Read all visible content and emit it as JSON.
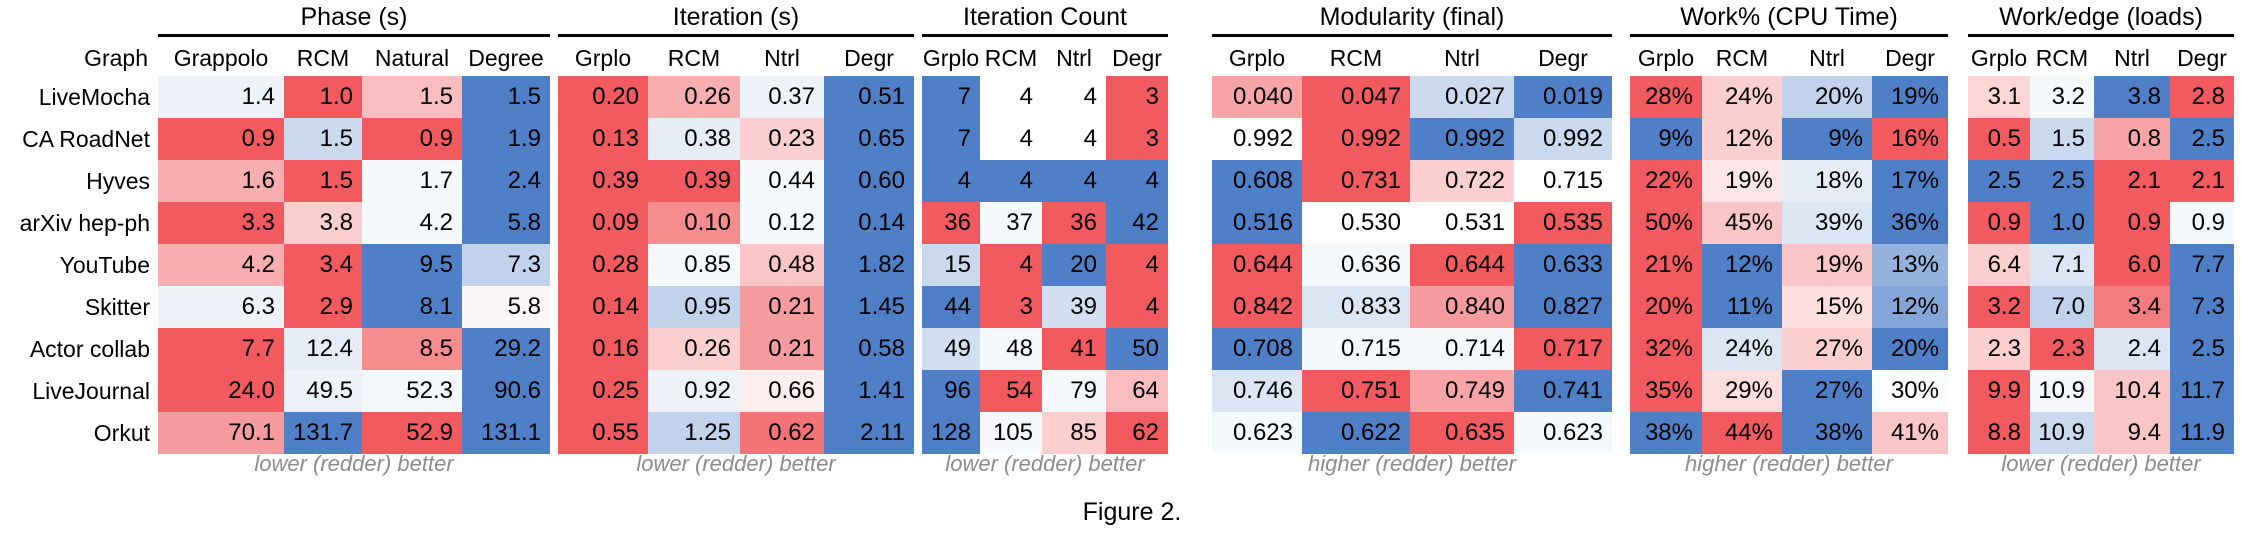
{
  "chart_data": {
    "type": "table",
    "caption": "Figure 2.",
    "row_header": "Graph",
    "rows": [
      "LiveMocha",
      "CA RoadNet",
      "Hyves",
      "arXiv hep-ph",
      "YouTube",
      "Skitter",
      "Actor collab",
      "LiveJournal",
      "Orkut"
    ],
    "colors": {
      "good": "#f15a5e",
      "neutral": "#ffffff",
      "bad": "#4f7fc6"
    },
    "groups": [
      {
        "title": "Phase (s)",
        "columns": [
          "Grappolo",
          "RCM",
          "Natural",
          "Degree"
        ],
        "note": "lower (redder) better",
        "better": "lower",
        "display": [
          [
            "1.4",
            "1.0",
            "1.5",
            "1.5"
          ],
          [
            "0.9",
            "1.5",
            "0.9",
            "1.9"
          ],
          [
            "1.6",
            "1.5",
            "1.7",
            "2.4"
          ],
          [
            "3.3",
            "3.8",
            "4.2",
            "5.8"
          ],
          [
            "4.2",
            "3.4",
            "9.5",
            "7.3"
          ],
          [
            "6.3",
            "2.9",
            "8.1",
            "5.8"
          ],
          [
            "7.7",
            "12.4",
            "8.5",
            "29.2"
          ],
          [
            "24.0",
            "49.5",
            "52.3",
            "90.6"
          ],
          [
            "70.1",
            "131.7",
            "52.9",
            "131.1"
          ]
        ],
        "shade": [
          [
            0.1,
            -1,
            -0.4,
            1
          ],
          [
            -1,
            0.3,
            -1,
            1
          ],
          [
            -0.5,
            -1,
            0.05,
            1
          ],
          [
            -1,
            -0.3,
            0.05,
            1
          ],
          [
            -0.5,
            -1,
            1,
            0.35
          ],
          [
            0.1,
            -1,
            1,
            -0.05
          ],
          [
            -1,
            0.15,
            -0.7,
            1
          ],
          [
            -1,
            0.1,
            0.05,
            1
          ],
          [
            -0.6,
            1,
            -1,
            1
          ]
        ]
      },
      {
        "title": "Iteration (s)",
        "columns": [
          "Grplo",
          "RCM",
          "Ntrl",
          "Degr"
        ],
        "note": "lower (redder) better",
        "better": "lower",
        "display": [
          [
            "0.20",
            "0.26",
            "0.37",
            "0.51"
          ],
          [
            "0.13",
            "0.38",
            "0.23",
            "0.65"
          ],
          [
            "0.39",
            "0.39",
            "0.44",
            "0.60"
          ],
          [
            "0.09",
            "0.10",
            "0.12",
            "0.14"
          ],
          [
            "0.28",
            "0.85",
            "0.48",
            "1.82"
          ],
          [
            "0.14",
            "0.95",
            "0.21",
            "1.45"
          ],
          [
            "0.16",
            "0.26",
            "0.21",
            "0.58"
          ],
          [
            "0.25",
            "0.92",
            "0.66",
            "1.41"
          ],
          [
            "0.55",
            "1.25",
            "0.62",
            "2.11"
          ]
        ],
        "shade": [
          [
            -1,
            -0.5,
            0.1,
            1
          ],
          [
            -1,
            0.15,
            -0.3,
            1
          ],
          [
            -1,
            -1,
            0.05,
            1
          ],
          [
            -1,
            -0.7,
            0.05,
            1
          ],
          [
            -1,
            0.05,
            -0.35,
            1
          ],
          [
            -1,
            0.35,
            -0.6,
            1
          ],
          [
            -1,
            -0.3,
            -0.6,
            1
          ],
          [
            -1,
            0.1,
            -0.1,
            1
          ],
          [
            -1,
            0.35,
            -0.85,
            1
          ]
        ]
      },
      {
        "title": "Iteration Count",
        "columns": [
          "Grplo",
          "RCM",
          "Ntrl",
          "Degr"
        ],
        "note": "lower (redder) better",
        "better": "lower",
        "display": [
          [
            "7",
            "4",
            "4",
            "3"
          ],
          [
            "7",
            "4",
            "4",
            "3"
          ],
          [
            "4",
            "4",
            "4",
            "4"
          ],
          [
            "36",
            "37",
            "36",
            "42"
          ],
          [
            "15",
            "4",
            "20",
            "4"
          ],
          [
            "44",
            "3",
            "39",
            "4"
          ],
          [
            "49",
            "48",
            "41",
            "50"
          ],
          [
            "96",
            "54",
            "79",
            "64"
          ],
          [
            "128",
            "105",
            "85",
            "62"
          ]
        ],
        "shade": [
          [
            1,
            0,
            0,
            -1
          ],
          [
            1,
            0,
            0,
            -1
          ],
          [
            1,
            1,
            1,
            1
          ],
          [
            -1,
            0.05,
            -1,
            1
          ],
          [
            0.3,
            -1,
            1,
            -1
          ],
          [
            1,
            -1,
            0.25,
            -1
          ],
          [
            0.25,
            0.05,
            -1,
            1
          ],
          [
            1,
            -1,
            0.05,
            -0.4
          ],
          [
            1,
            0.05,
            -0.3,
            -1
          ]
        ]
      },
      {
        "title": "Modularity (final)",
        "columns": [
          "Grplo",
          "RCM",
          "Ntrl",
          "Degr"
        ],
        "note": "higher (redder) better",
        "better": "higher",
        "display": [
          [
            "0.040",
            "0.047",
            "0.027",
            "0.019"
          ],
          [
            "0.992",
            "0.992",
            "0.992",
            "0.992"
          ],
          [
            "0.608",
            "0.731",
            "0.722",
            "0.715"
          ],
          [
            "0.516",
            "0.530",
            "0.531",
            "0.535"
          ],
          [
            "0.644",
            "0.636",
            "0.644",
            "0.633"
          ],
          [
            "0.842",
            "0.833",
            "0.840",
            "0.827"
          ],
          [
            "0.708",
            "0.715",
            "0.714",
            "0.717"
          ],
          [
            "0.746",
            "0.751",
            "0.749",
            "0.741"
          ],
          [
            "0.623",
            "0.622",
            "0.635",
            "0.623"
          ]
        ],
        "shade": [
          [
            -0.55,
            -1,
            0.3,
            1
          ],
          [
            0,
            -1,
            1,
            0.3
          ],
          [
            1,
            -1,
            -0.3,
            0
          ],
          [
            1,
            0,
            0,
            -1
          ],
          [
            -1,
            0.05,
            -1,
            1
          ],
          [
            -1,
            0.2,
            -0.6,
            1
          ],
          [
            1,
            0.05,
            0.05,
            -1
          ],
          [
            0.2,
            -1,
            -0.55,
            1
          ],
          [
            0.05,
            1,
            -1,
            0.05
          ]
        ]
      },
      {
        "title": "Work% (CPU Time)",
        "columns": [
          "Grplo",
          "RCM",
          "Ntrl",
          "Degr"
        ],
        "note": "higher (redder) better",
        "better": "higher",
        "display": [
          [
            "28%",
            "24%",
            "20%",
            "19%"
          ],
          [
            "9%",
            "12%",
            "9%",
            "16%"
          ],
          [
            "22%",
            "19%",
            "18%",
            "17%"
          ],
          [
            "50%",
            "45%",
            "39%",
            "36%"
          ],
          [
            "21%",
            "12%",
            "19%",
            "13%"
          ],
          [
            "20%",
            "11%",
            "15%",
            "12%"
          ],
          [
            "32%",
            "24%",
            "27%",
            "20%"
          ],
          [
            "35%",
            "29%",
            "27%",
            "30%"
          ],
          [
            "38%",
            "44%",
            "38%",
            "41%"
          ]
        ],
        "shade": [
          [
            -1,
            -0.3,
            0.35,
            1
          ],
          [
            1,
            -0.3,
            1,
            -1
          ],
          [
            -1,
            -0.15,
            0.15,
            1
          ],
          [
            -1,
            -0.35,
            0.2,
            1
          ],
          [
            -1,
            1,
            -0.35,
            0.6
          ],
          [
            -1,
            1,
            -0.2,
            0.7
          ],
          [
            -1,
            0.2,
            -0.3,
            1
          ],
          [
            -1,
            -0.2,
            1,
            0.02
          ],
          [
            1,
            -1,
            1,
            -0.35
          ]
        ]
      },
      {
        "title": "Work/edge (loads)",
        "columns": [
          "Grplo",
          "RCM",
          "Ntrl",
          "Degr"
        ],
        "note": "lower (redder) better",
        "better": "lower",
        "display": [
          [
            "3.1",
            "3.2",
            "3.8",
            "2.8"
          ],
          [
            "0.5",
            "1.5",
            "0.8",
            "2.5"
          ],
          [
            "2.5",
            "2.5",
            "2.1",
            "2.1"
          ],
          [
            "0.9",
            "1.0",
            "0.9",
            "0.9"
          ],
          [
            "6.4",
            "7.1",
            "6.0",
            "7.7"
          ],
          [
            "3.2",
            "7.0",
            "3.4",
            "7.3"
          ],
          [
            "2.3",
            "2.3",
            "2.4",
            "2.5"
          ],
          [
            "9.9",
            "10.9",
            "10.4",
            "11.7"
          ],
          [
            "8.8",
            "10.9",
            "9.4",
            "11.9"
          ]
        ],
        "shade": [
          [
            -0.25,
            0.05,
            1,
            -1
          ],
          [
            -1,
            0.3,
            -0.55,
            1
          ],
          [
            1,
            1,
            -1,
            -1
          ],
          [
            -1,
            1,
            -1,
            0.05
          ],
          [
            -0.3,
            0.2,
            -1,
            1
          ],
          [
            -1,
            0.35,
            -0.8,
            1
          ],
          [
            -0.3,
            -1,
            0.2,
            1
          ],
          [
            -1,
            0.05,
            -0.35,
            1
          ],
          [
            -1,
            0.3,
            -0.35,
            1
          ]
        ]
      }
    ]
  }
}
